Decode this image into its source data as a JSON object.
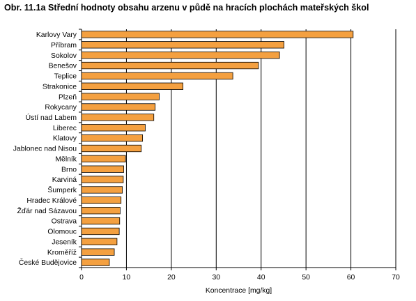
{
  "chart_data": {
    "type": "bar",
    "orientation": "horizontal",
    "title": "Obr. 11.1a  Střední hodnoty obsahu arzenu v půdě na hracích plochách mateřských škol",
    "xlabel": "Koncentrace [mg/kg]",
    "ylabel": "",
    "xlim": [
      0,
      70
    ],
    "xticks": [
      "0",
      "10",
      "20",
      "30",
      "40",
      "50",
      "60",
      "70"
    ],
    "grid": "vertical",
    "bar_color": "#f4a040",
    "categories": [
      "Karlovy Vary",
      "Příbram",
      "Sokolov",
      "Benešov",
      "Teplice",
      "Strakonice",
      "Plzeň",
      "Rokycany",
      "Ústí nad Labem",
      "Liberec",
      "Klatovy",
      "Jablonec nad Nisou",
      "Mělník",
      "Brno",
      "Karviná",
      "Šumperk",
      "Hradec Králové",
      "Žďár nad Sázavou",
      "Ostrava",
      "Olomouc",
      "Jeseník",
      "Kroměříž",
      "České Budějovice"
    ],
    "values": [
      60.5,
      45.1,
      44.1,
      39.4,
      33.7,
      22.6,
      17.3,
      16.4,
      16.1,
      14.2,
      13.6,
      13.3,
      9.8,
      9.4,
      9.3,
      9.1,
      8.8,
      8.6,
      8.5,
      8.4,
      7.9,
      7.3,
      6.2
    ]
  }
}
